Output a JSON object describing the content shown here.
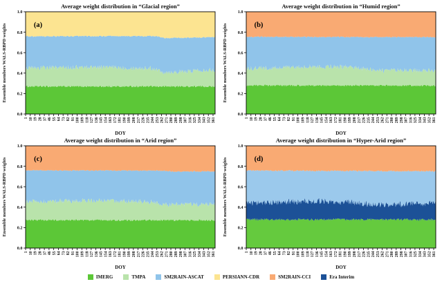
{
  "figure": {
    "background": "#ffffff",
    "legend": [
      {
        "label": "IMERG",
        "color": "#5cc737",
        "icon": "swatch-square"
      },
      {
        "label": "TMPA",
        "color": "#b9e3ab",
        "icon": "swatch-square"
      },
      {
        "label": "SM2RAIN-ASCAT",
        "color": "#90c4ea",
        "icon": "swatch-square"
      },
      {
        "label": "PERSIANN-CDR",
        "color": "#fce491",
        "icon": "swatch-square"
      },
      {
        "label": "SM2RAIN-CCI",
        "color": "#f9aa73",
        "icon": "swatch-square"
      },
      {
        "label": "Era Interim",
        "color": "#1c5197",
        "icon": "swatch-square"
      }
    ]
  },
  "chart_data": [
    {
      "id": "a",
      "type": "area",
      "stacked": true,
      "title": "Average weight distribution in “Glacial region”",
      "panel_label": "(a)",
      "xlabel": "DOY",
      "ylabel": "Ensemble members WALS-RBPD weights",
      "xlim": [
        1,
        365
      ],
      "ylim": [
        0,
        1
      ],
      "grid": false,
      "xticks": [
        1,
        10,
        19,
        28,
        37,
        46,
        55,
        64,
        73,
        82,
        91,
        100,
        109,
        118,
        127,
        136,
        145,
        154,
        163,
        172,
        181,
        190,
        199,
        208,
        217,
        226,
        235,
        244,
        253,
        262,
        271,
        280,
        289,
        298,
        307,
        316,
        325,
        334,
        343,
        352,
        361
      ],
      "yticks": [
        "0.0",
        "0.2",
        "0.4",
        "0.6",
        "0.8",
        "1.0"
      ],
      "layers": [
        {
          "name": "IMERG",
          "color": "#5cc737",
          "mean_weight": 0.27,
          "top_boundary": [
            [
              1,
              0.27
            ],
            [
              361,
              0.27
            ]
          ],
          "noise": 0.009
        },
        {
          "name": "TMPA",
          "color": "#b9e3ab",
          "mean_weight": 0.18,
          "top_boundary": [
            [
              1,
              0.45
            ],
            [
              140,
              0.46
            ],
            [
              250,
              0.445
            ],
            [
              262,
              0.412
            ],
            [
              310,
              0.412
            ],
            [
              330,
              0.43
            ],
            [
              361,
              0.432
            ]
          ],
          "noise": 0.024
        },
        {
          "name": "SM2RAIN-ASCAT",
          "color": "#90c4ea",
          "mean_weight": 0.31,
          "top_boundary": [
            [
              1,
              0.76
            ],
            [
              250,
              0.762
            ],
            [
              268,
              0.744
            ],
            [
              320,
              0.746
            ],
            [
              361,
              0.754
            ]
          ],
          "noise": 0.006
        },
        {
          "name": "PERSIANN-CDR",
          "color": "#fce491",
          "mean_weight": 0.24,
          "top_boundary": [
            [
              1,
              1.0
            ],
            [
              361,
              1.0
            ]
          ],
          "noise": 0
        }
      ]
    },
    {
      "id": "b",
      "type": "area",
      "stacked": true,
      "title": "Average weight distribution in “Humid region”",
      "panel_label": "(b)",
      "xlabel": "DOY",
      "ylabel": "Ensemble members WALS-RBPD weights",
      "xlim": [
        1,
        365
      ],
      "ylim": [
        0,
        1
      ],
      "grid": false,
      "xticks": [
        1,
        10,
        19,
        28,
        37,
        46,
        55,
        64,
        73,
        82,
        91,
        100,
        109,
        118,
        127,
        136,
        145,
        154,
        163,
        172,
        181,
        190,
        199,
        208,
        217,
        226,
        235,
        244,
        253,
        262,
        271,
        280,
        289,
        298,
        307,
        316,
        325,
        334,
        343,
        352,
        361
      ],
      "yticks": [
        "0.0",
        "0.2",
        "0.4",
        "0.6",
        "0.8",
        "1.0"
      ],
      "layers": [
        {
          "name": "IMERG",
          "color": "#5cc737",
          "mean_weight": 0.28,
          "top_boundary": [
            [
              1,
              0.28
            ],
            [
              361,
              0.278
            ]
          ],
          "noise": 0.009
        },
        {
          "name": "TMPA",
          "color": "#b9e3ab",
          "mean_weight": 0.16,
          "top_boundary": [
            [
              1,
              0.445
            ],
            [
              150,
              0.465
            ],
            [
              200,
              0.46
            ],
            [
              262,
              0.425
            ],
            [
              361,
              0.43
            ]
          ],
          "noise": 0.024
        },
        {
          "name": "SM2RAIN-ASCAT",
          "color": "#90c4ea",
          "mean_weight": 0.31,
          "top_boundary": [
            [
              1,
              0.755
            ],
            [
              361,
              0.752
            ]
          ],
          "noise": 0.006
        },
        {
          "name": "SM2RAIN-CCI",
          "color": "#f9aa73",
          "mean_weight": 0.25,
          "top_boundary": [
            [
              1,
              1.0
            ],
            [
              361,
              1.0
            ]
          ],
          "noise": 0
        }
      ]
    },
    {
      "id": "c",
      "type": "area",
      "stacked": true,
      "title": "Average weight distribution in “Arid region”",
      "panel_label": "(c)",
      "xlabel": "DOY",
      "ylabel": "Ensemble members WALS-RBPD weights",
      "xlim": [
        1,
        365
      ],
      "ylim": [
        0,
        1
      ],
      "grid": false,
      "xticks": [
        1,
        10,
        19,
        28,
        37,
        46,
        55,
        64,
        73,
        82,
        91,
        100,
        109,
        118,
        127,
        136,
        145,
        154,
        163,
        172,
        181,
        190,
        199,
        208,
        217,
        226,
        235,
        244,
        253,
        262,
        271,
        280,
        289,
        298,
        307,
        316,
        325,
        334,
        343,
        352,
        361
      ],
      "yticks": [
        "0.0",
        "0.2",
        "0.4",
        "0.6",
        "0.8",
        "1.0"
      ],
      "layers": [
        {
          "name": "IMERG",
          "color": "#5cc737",
          "mean_weight": 0.275,
          "top_boundary": [
            [
              1,
              0.275
            ],
            [
              361,
              0.272
            ]
          ],
          "noise": 0.009
        },
        {
          "name": "TMPA",
          "color": "#b9e3ab",
          "mean_weight": 0.17,
          "top_boundary": [
            [
              1,
              0.455
            ],
            [
              150,
              0.465
            ],
            [
              250,
              0.45
            ],
            [
              262,
              0.425
            ],
            [
              361,
              0.428
            ]
          ],
          "noise": 0.024
        },
        {
          "name": "SM2RAIN-ASCAT",
          "color": "#90c4ea",
          "mean_weight": 0.31,
          "top_boundary": [
            [
              1,
              0.76
            ],
            [
              260,
              0.757
            ],
            [
              290,
              0.748
            ],
            [
              361,
              0.75
            ]
          ],
          "noise": 0.006
        },
        {
          "name": "SM2RAIN-CCI",
          "color": "#f9aa73",
          "mean_weight": 0.245,
          "top_boundary": [
            [
              1,
              1.0
            ],
            [
              361,
              1.0
            ]
          ],
          "noise": 0
        }
      ]
    },
    {
      "id": "d",
      "type": "area",
      "stacked": true,
      "title": "Average weight distribution in “Hyper-Arid region”",
      "panel_label": "(d)",
      "xlabel": "DOY",
      "ylabel": "Ensemble members WALS-RBPD weights",
      "xlim": [
        1,
        365
      ],
      "ylim": [
        0,
        1
      ],
      "grid": false,
      "xticks": [
        1,
        10,
        19,
        28,
        37,
        46,
        55,
        64,
        73,
        82,
        91,
        100,
        109,
        118,
        127,
        136,
        145,
        154,
        163,
        172,
        181,
        190,
        199,
        208,
        217,
        226,
        235,
        244,
        253,
        262,
        271,
        280,
        289,
        298,
        307,
        316,
        325,
        334,
        343,
        352,
        361
      ],
      "yticks": [
        "0.0",
        "0.2",
        "0.4",
        "0.6",
        "0.8",
        "1.0"
      ],
      "layers": [
        {
          "name": "IMERG",
          "color": "#65ca3e",
          "mean_weight": 0.28,
          "top_boundary": [
            [
              1,
              0.28
            ],
            [
              361,
              0.278
            ]
          ],
          "noise": 0.012
        },
        {
          "name": "Era Interim",
          "color": "#1c5197",
          "mean_weight": 0.165,
          "top_boundary": [
            [
              1,
              0.44
            ],
            [
              80,
              0.455
            ],
            [
              150,
              0.46
            ],
            [
              200,
              0.45
            ],
            [
              262,
              0.425
            ],
            [
              320,
              0.435
            ],
            [
              361,
              0.44
            ]
          ],
          "noise": 0.03
        },
        {
          "name": "SM2RAIN-ASCAT",
          "color": "#9bc9ec",
          "mean_weight": 0.31,
          "top_boundary": [
            [
              1,
              0.758
            ],
            [
              361,
              0.752
            ]
          ],
          "noise": 0.007
        },
        {
          "name": "SM2RAIN-CCI",
          "color": "#f9aa73",
          "mean_weight": 0.245,
          "top_boundary": [
            [
              1,
              1.0
            ],
            [
              361,
              1.0
            ]
          ],
          "noise": 0
        }
      ]
    }
  ]
}
